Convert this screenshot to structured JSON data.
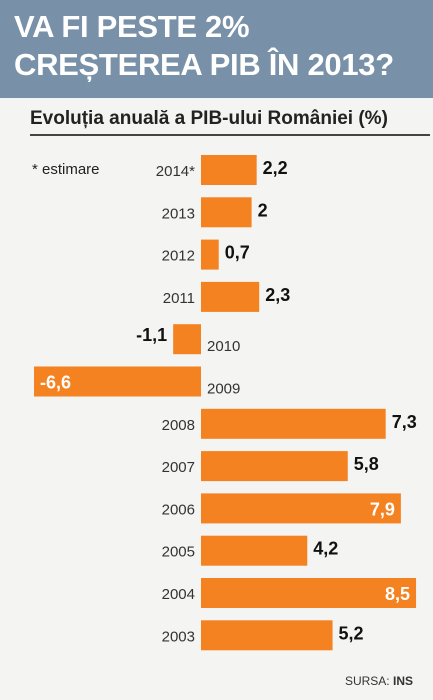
{
  "header": {
    "title": "VA FI PESTE 2% CREȘTEREA PIB ÎN 2013?"
  },
  "subtitle": "Evoluția anuală a PIB-ului României (%)",
  "note": "* estimare",
  "source": {
    "label": "SURSA:",
    "value": "INS"
  },
  "colors": {
    "bar": "#f58220",
    "header": "#7890a8"
  },
  "chart_data": {
    "type": "bar",
    "orientation": "horizontal",
    "title": "Evoluția anuală a PIB-ului României (%)",
    "categories": [
      "2014*",
      "2013",
      "2012",
      "2011",
      "2010",
      "2009",
      "2008",
      "2007",
      "2006",
      "2005",
      "2004",
      "2003"
    ],
    "values": [
      2.2,
      2,
      0.7,
      2.3,
      -1.1,
      -6.6,
      7.3,
      5.8,
      7.9,
      4.2,
      8.5,
      5.2
    ],
    "labels": [
      "2,2",
      "2",
      "0,7",
      "2,3",
      "-1,1",
      "-6,6",
      "7,3",
      "5,8",
      "7,9",
      "4,2",
      "8,5",
      "5,2"
    ],
    "xlim": [
      -6.6,
      8.5
    ]
  }
}
